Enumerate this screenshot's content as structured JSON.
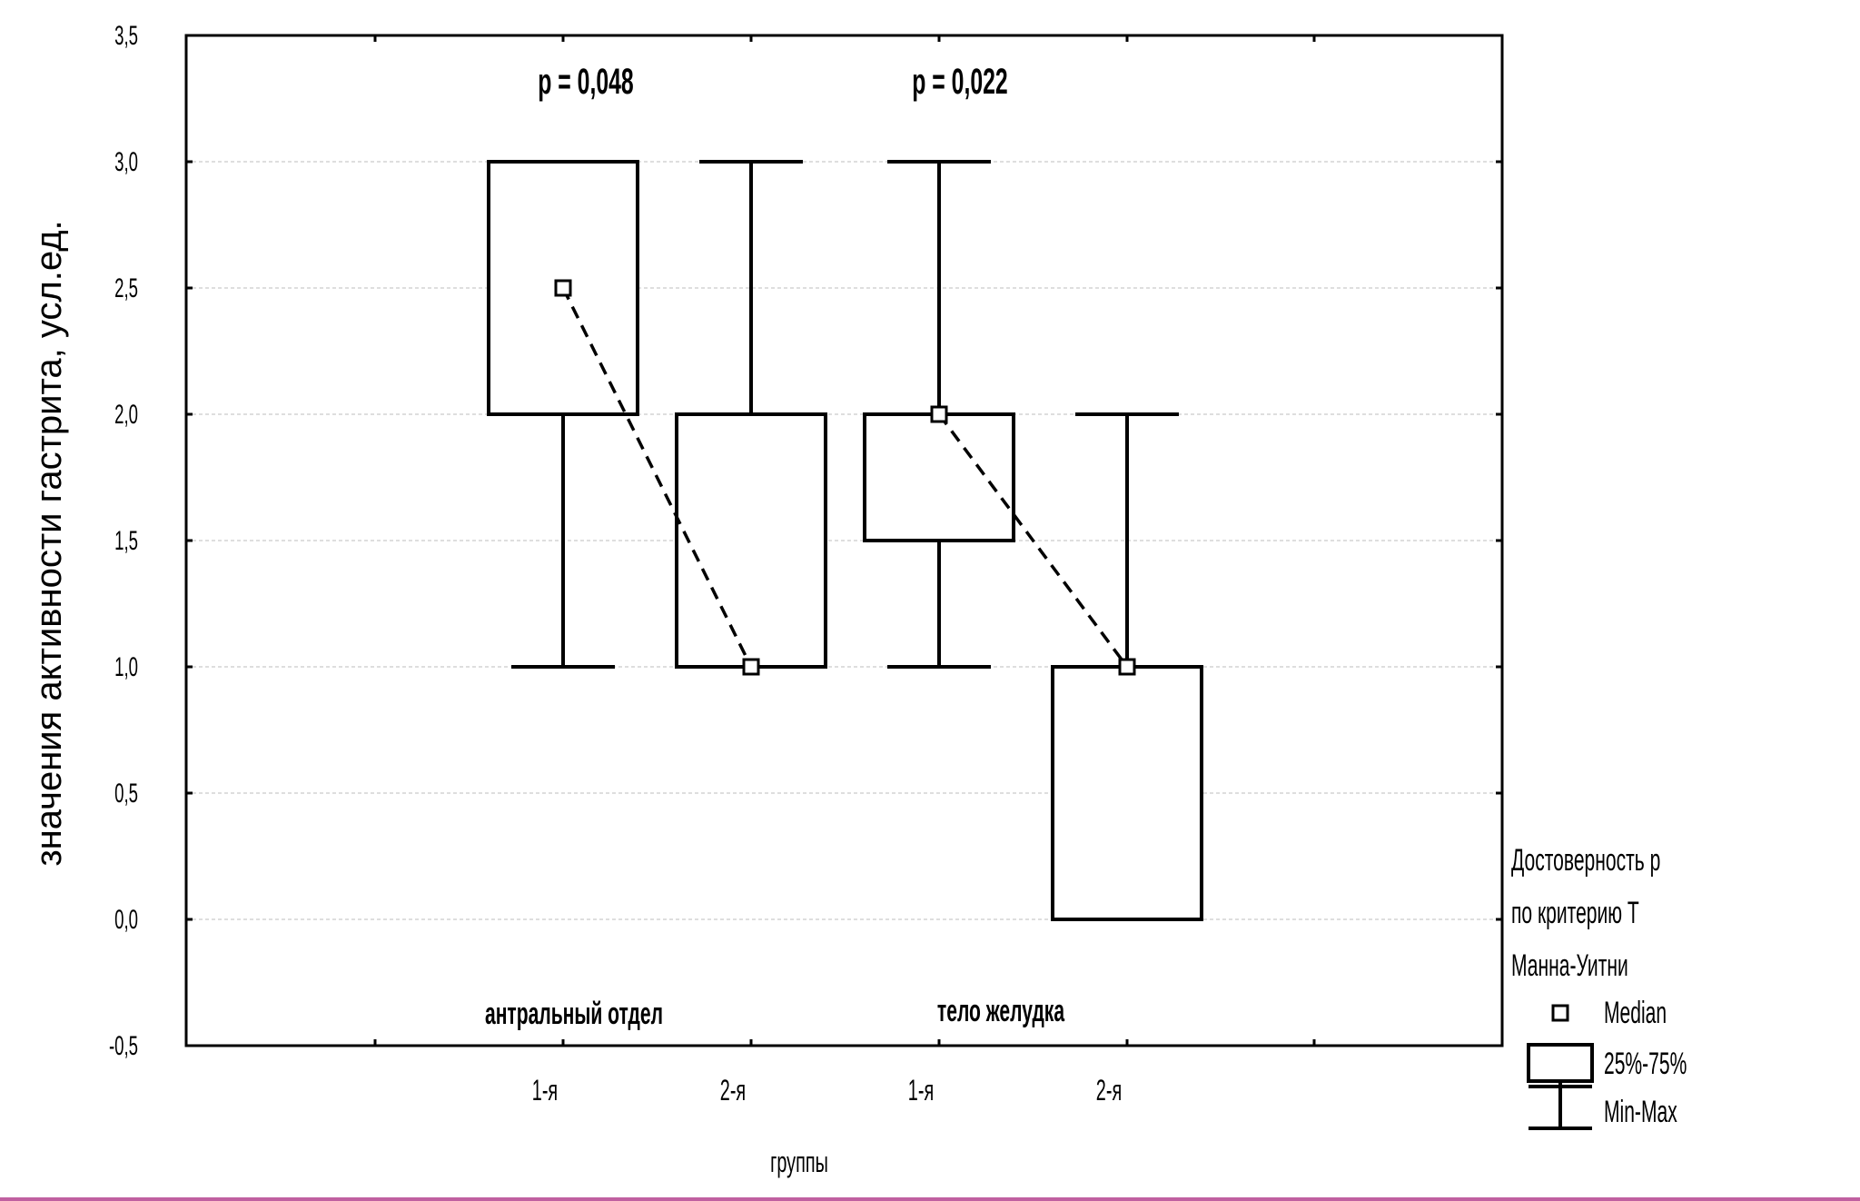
{
  "chart_data": {
    "type": "boxplot",
    "ylabel": "значения активности гастрита, усл.ед.",
    "xlabel": "группы",
    "ylim": [
      -0.5,
      3.5
    ],
    "y_ticks": [
      "-0,5",
      "0,0",
      "0,5",
      "1,0",
      "1,5",
      "2,0",
      "2,5",
      "3,0",
      "3,5"
    ],
    "y_tick_values": [
      -0.5,
      0.0,
      0.5,
      1.0,
      1.5,
      2.0,
      2.5,
      3.0,
      3.5
    ],
    "grid": "horizontal-dashed",
    "categories": [
      "1-я",
      "2-я",
      "1-я",
      "2-я"
    ],
    "section_labels": [
      "антральный отдел",
      "тело желудка"
    ],
    "p_values": [
      "p = 0,048",
      "p = 0,022"
    ],
    "boxes": [
      {
        "category": "1-я",
        "section": "антральный отдел",
        "median": 2.5,
        "q1": 2.0,
        "q3": 3.0,
        "min": 1.0,
        "max": 3.0
      },
      {
        "category": "2-я",
        "section": "антральный отдел",
        "median": 1.0,
        "q1": 1.0,
        "q3": 2.0,
        "min": 1.0,
        "max": 3.0
      },
      {
        "category": "1-я",
        "section": "тело желудка",
        "median": 2.0,
        "q1": 1.5,
        "q3": 2.0,
        "min": 1.0,
        "max": 3.0
      },
      {
        "category": "2-я",
        "section": "тело желудка",
        "median": 1.0,
        "q1": 0.0,
        "q3": 1.0,
        "min": 0.0,
        "max": 2.0
      }
    ],
    "legend": {
      "title": [
        "Достоверность p",
        "по критерию T",
        "Манна-Уитни"
      ],
      "items": [
        "Median",
        "25%-75%",
        "Min-Max"
      ],
      "position": "right"
    }
  }
}
